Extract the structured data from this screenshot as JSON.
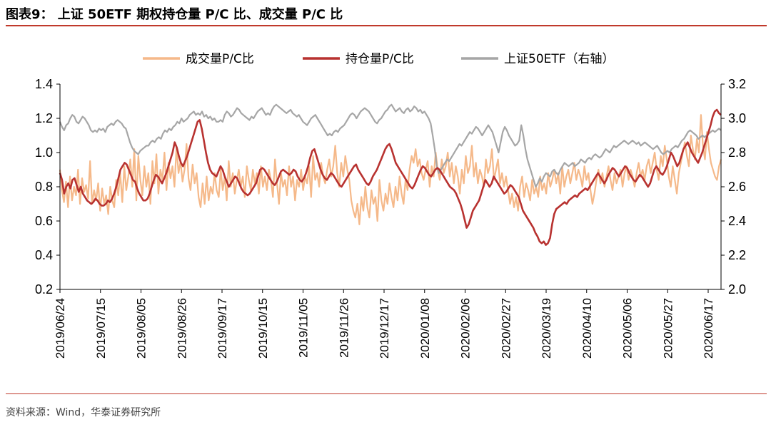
{
  "header": {
    "title": "图表9： 上证 50ETF 期权持仓量 P/C 比、成交量 P/C 比"
  },
  "footer": {
    "source": "资料来源：Wind，华泰证券研究所"
  },
  "chart_data": {
    "type": "line",
    "title": "上证 50ETF 期权持仓量 P/C 比、成交量 P/C 比",
    "x_tick_labels": [
      "2019/06/24",
      "2019/07/15",
      "2019/08/05",
      "2019/08/26",
      "2019/09/17",
      "2019/10/15",
      "2019/11/05",
      "2019/11/26",
      "2019/12/17",
      "2020/01/08",
      "2020/02/06",
      "2020/02/27",
      "2020/03/19",
      "2020/04/10",
      "2020/05/06",
      "2020/05/27",
      "2020/06/17"
    ],
    "y_left": {
      "min": 0.2,
      "max": 1.4,
      "ticks": [
        "0.2",
        "0.4",
        "0.6",
        "0.8",
        "1.0",
        "1.2",
        "1.4"
      ]
    },
    "y_right": {
      "min": 2.0,
      "max": 3.2,
      "ticks": [
        "2.0",
        "2.2",
        "2.4",
        "2.6",
        "2.8",
        "3.0",
        "3.2"
      ]
    },
    "legend_position": "top-center",
    "series": [
      {
        "name": "成交量P/C比",
        "axis": "left",
        "color": "#f5b98a",
        "values": [
          0.9,
          0.78,
          0.71,
          0.83,
          0.68,
          0.86,
          0.72,
          0.8,
          0.75,
          0.9,
          0.7,
          0.85,
          0.77,
          0.81,
          0.73,
          0.95,
          0.7,
          0.78,
          0.72,
          0.82,
          0.66,
          0.79,
          0.7,
          0.75,
          0.64,
          0.8,
          0.72,
          0.68,
          0.84,
          0.75,
          0.88,
          0.71,
          0.92,
          0.78,
          0.86,
          0.96,
          0.8,
          1.02,
          0.72,
          0.98,
          0.84,
          0.75,
          0.92,
          0.8,
          0.88,
          0.7,
          0.95,
          0.82,
          0.99,
          0.76,
          0.9,
          0.84,
          1.0,
          0.78,
          0.94,
          0.85,
          0.92,
          0.8,
          1.03,
          0.88,
          0.95,
          0.83,
          0.9,
          1.05,
          0.85,
          0.78,
          0.93,
          0.82,
          0.88,
          0.74,
          0.68,
          0.82,
          0.7,
          0.86,
          0.72,
          0.8,
          0.76,
          0.88,
          0.78,
          0.74,
          0.9,
          0.78,
          0.86,
          0.72,
          0.95,
          0.8,
          0.88,
          0.76,
          0.84,
          0.9,
          0.8,
          0.86,
          0.74,
          0.92,
          0.84,
          0.78,
          0.9,
          0.82,
          0.88,
          0.76,
          0.92,
          0.8,
          0.86,
          0.78,
          0.9,
          0.84,
          0.74,
          0.96,
          0.82,
          0.7,
          0.88,
          0.8,
          0.84,
          0.75,
          0.92,
          0.8,
          0.86,
          0.72,
          0.84,
          0.8,
          0.9,
          0.78,
          0.86,
          0.82,
          0.92,
          0.74,
          0.98,
          0.84,
          0.88,
          0.8,
          0.94,
          0.86,
          0.82,
          0.9,
          0.96,
          0.86,
          0.92,
          1.04,
          0.88,
          0.8,
          0.94,
          0.86,
          0.98,
          0.9,
          0.84,
          0.72,
          0.66,
          0.62,
          0.7,
          0.58,
          0.74,
          0.66,
          0.8,
          0.68,
          0.62,
          0.78,
          0.7,
          0.74,
          0.6,
          0.84,
          0.72,
          0.66,
          0.76,
          0.7,
          0.82,
          0.74,
          0.68,
          0.8,
          0.72,
          0.86,
          0.76,
          0.7,
          0.84,
          0.78,
          0.9,
          0.98,
          0.94,
          1.02,
          0.92,
          0.96,
          0.88,
          0.84,
          0.9,
          0.95,
          0.8,
          0.92,
          0.86,
          1.0,
          0.9,
          0.84,
          0.96,
          0.88,
          0.92,
          1.0,
          0.86,
          0.94,
          0.82,
          0.92,
          0.86,
          0.76,
          0.9,
          0.82,
          0.98,
          0.88,
          0.92,
          1.04,
          0.86,
          0.94,
          0.82,
          0.9,
          0.86,
          0.8,
          0.96,
          0.88,
          0.92,
          1.02,
          0.84,
          0.9,
          0.96,
          0.82,
          0.88,
          0.8,
          0.86,
          0.78,
          0.7,
          0.76,
          0.68,
          0.74,
          0.66,
          0.8,
          0.86,
          0.74,
          0.82,
          0.78,
          0.72,
          0.84,
          0.76,
          0.8,
          0.74,
          0.86,
          0.78,
          0.82,
          0.76,
          0.88,
          0.8,
          0.84,
          0.9,
          0.82,
          0.88,
          0.76,
          0.92,
          0.8,
          0.86,
          0.9,
          0.82,
          0.88,
          0.94,
          0.84,
          0.9,
          0.86,
          0.8,
          0.92,
          0.84,
          0.88,
          0.78,
          0.7,
          0.76,
          0.84,
          0.9,
          0.82,
          0.88,
          0.8,
          0.86,
          0.92,
          0.84,
          0.78,
          0.88,
          0.82,
          0.86,
          0.9,
          0.8,
          0.88,
          0.92,
          0.84,
          0.9,
          0.86,
          0.8,
          0.88,
          0.94,
          0.86,
          0.9,
          0.84,
          0.92,
          0.96,
          0.88,
          0.94,
          1.0,
          0.9,
          0.84,
          0.98,
          0.92,
          1.04,
          0.96,
          0.86,
          0.8,
          0.92,
          0.84,
          0.76,
          0.88,
          0.94,
          1.0,
          1.06,
          0.98,
          0.92,
          1.1,
          1.02,
          0.96,
          1.08,
          1.0,
          1.22,
          1.04,
          0.96,
          1.12,
          1.02,
          0.94,
          0.9,
          0.86,
          0.84,
          0.92,
          0.96
        ]
      },
      {
        "name": "持仓量P/C比",
        "axis": "left",
        "color": "#b83230",
        "values": [
          0.88,
          0.84,
          0.76,
          0.8,
          0.82,
          0.79,
          0.84,
          0.85,
          0.81,
          0.77,
          0.8,
          0.76,
          0.74,
          0.72,
          0.71,
          0.7,
          0.71,
          0.73,
          0.72,
          0.7,
          0.69,
          0.69,
          0.7,
          0.72,
          0.71,
          0.73,
          0.76,
          0.8,
          0.85,
          0.9,
          0.92,
          0.94,
          0.93,
          0.9,
          0.87,
          0.84,
          0.83,
          0.79,
          0.76,
          0.74,
          0.72,
          0.72,
          0.73,
          0.76,
          0.8,
          0.84,
          0.87,
          0.86,
          0.84,
          0.82,
          0.85,
          0.88,
          0.92,
          0.96,
          1.0,
          1.06,
          1.03,
          0.98,
          0.94,
          0.92,
          0.95,
          0.98,
          1.02,
          1.06,
          1.1,
          1.14,
          1.18,
          1.19,
          1.14,
          1.07,
          1.0,
          0.94,
          0.9,
          0.88,
          0.87,
          0.86,
          0.89,
          0.92,
          0.9,
          0.86,
          0.83,
          0.8,
          0.82,
          0.84,
          0.86,
          0.85,
          0.82,
          0.79,
          0.77,
          0.76,
          0.75,
          0.76,
          0.78,
          0.8,
          0.82,
          0.86,
          0.9,
          0.91,
          0.9,
          0.88,
          0.86,
          0.84,
          0.82,
          0.81,
          0.83,
          0.86,
          0.89,
          0.9,
          0.89,
          0.88,
          0.87,
          0.88,
          0.9,
          0.89,
          0.86,
          0.84,
          0.83,
          0.85,
          0.88,
          0.92,
          0.97,
          1.01,
          1.02,
          0.98,
          0.94,
          0.9,
          0.87,
          0.85,
          0.84,
          0.86,
          0.88,
          0.87,
          0.85,
          0.83,
          0.81,
          0.8,
          0.82,
          0.84,
          0.86,
          0.88,
          0.9,
          0.92,
          0.93,
          0.9,
          0.88,
          0.86,
          0.84,
          0.82,
          0.81,
          0.83,
          0.86,
          0.88,
          0.9,
          0.93,
          0.96,
          0.99,
          1.02,
          1.04,
          1.05,
          1.02,
          0.98,
          0.94,
          0.92,
          0.9,
          0.88,
          0.86,
          0.84,
          0.82,
          0.8,
          0.79,
          0.81,
          0.84,
          0.87,
          0.9,
          0.92,
          0.91,
          0.89,
          0.87,
          0.86,
          0.88,
          0.9,
          0.91,
          0.9,
          0.88,
          0.86,
          0.84,
          0.82,
          0.8,
          0.79,
          0.78,
          0.76,
          0.73,
          0.7,
          0.66,
          0.61,
          0.56,
          0.58,
          0.62,
          0.66,
          0.68,
          0.7,
          0.72,
          0.76,
          0.8,
          0.84,
          0.82,
          0.8,
          0.82,
          0.86,
          0.84,
          0.82,
          0.8,
          0.78,
          0.76,
          0.77,
          0.79,
          0.81,
          0.8,
          0.78,
          0.76,
          0.74,
          0.7,
          0.66,
          0.64,
          0.62,
          0.6,
          0.58,
          0.56,
          0.53,
          0.51,
          0.48,
          0.47,
          0.48,
          0.46,
          0.47,
          0.5,
          0.58,
          0.64,
          0.67,
          0.68,
          0.69,
          0.7,
          0.71,
          0.7,
          0.72,
          0.73,
          0.74,
          0.75,
          0.74,
          0.76,
          0.77,
          0.78,
          0.79,
          0.78,
          0.8,
          0.82,
          0.84,
          0.86,
          0.88,
          0.86,
          0.84,
          0.82,
          0.84,
          0.87,
          0.89,
          0.91,
          0.9,
          0.88,
          0.86,
          0.88,
          0.9,
          0.92,
          0.91,
          0.88,
          0.86,
          0.84,
          0.83,
          0.85,
          0.87,
          0.86,
          0.84,
          0.82,
          0.8,
          0.82,
          0.86,
          0.9,
          0.92,
          0.9,
          0.88,
          0.87,
          0.89,
          0.92,
          0.96,
          1.0,
          0.98,
          0.95,
          0.92,
          0.94,
          0.98,
          1.02,
          1.04,
          1.06,
          1.03,
          1.0,
          0.98,
          0.96,
          0.94,
          0.97,
          1.0,
          1.04,
          1.08,
          1.12,
          1.16,
          1.21,
          1.24,
          1.25,
          1.23,
          1.22
        ]
      },
      {
        "name": "上证50ETF（右轴）",
        "axis": "right",
        "color": "#a6a6a6",
        "values": [
          2.98,
          2.95,
          2.93,
          2.96,
          2.97,
          3.0,
          3.02,
          3.01,
          2.98,
          2.97,
          2.99,
          3.01,
          3.0,
          2.98,
          2.96,
          2.93,
          2.92,
          2.93,
          2.92,
          2.94,
          2.93,
          2.94,
          2.92,
          2.95,
          2.96,
          2.97,
          2.96,
          2.98,
          2.99,
          2.98,
          2.97,
          2.95,
          2.94,
          2.9,
          2.86,
          2.83,
          2.81,
          2.8,
          2.79,
          2.81,
          2.82,
          2.83,
          2.84,
          2.84,
          2.86,
          2.87,
          2.86,
          2.88,
          2.89,
          2.88,
          2.91,
          2.93,
          2.92,
          2.94,
          2.93,
          2.95,
          2.96,
          2.98,
          2.97,
          3.0,
          2.98,
          2.99,
          3.0,
          3.02,
          3.03,
          3.04,
          3.02,
          3.03,
          3.02,
          3.04,
          3.01,
          3.02,
          3.0,
          3.01,
          2.99,
          3.0,
          2.98,
          2.98,
          2.99,
          2.98,
          3.02,
          3.04,
          3.03,
          3.01,
          3.02,
          3.04,
          3.06,
          3.05,
          3.03,
          3.02,
          3.01,
          3.0,
          2.99,
          3.01,
          3.0,
          3.02,
          3.04,
          3.05,
          3.06,
          3.04,
          3.02,
          3.03,
          3.02,
          3.05,
          3.07,
          3.08,
          3.07,
          3.06,
          3.05,
          3.04,
          3.03,
          3.04,
          3.05,
          3.03,
          3.02,
          3.01,
          3.02,
          3.0,
          2.98,
          2.97,
          2.96,
          2.98,
          3.0,
          3.01,
          3.02,
          3.0,
          2.98,
          2.96,
          2.94,
          2.92,
          2.9,
          2.91,
          2.9,
          2.92,
          2.93,
          2.92,
          2.94,
          2.95,
          2.96,
          2.98,
          3.0,
          3.02,
          3.03,
          3.02,
          3.0,
          3.02,
          3.04,
          3.05,
          3.06,
          3.05,
          3.04,
          3.02,
          3.0,
          2.98,
          2.97,
          2.99,
          3.0,
          3.02,
          3.04,
          3.05,
          3.07,
          3.08,
          3.06,
          3.04,
          3.05,
          3.06,
          3.04,
          3.03,
          3.05,
          3.06,
          3.04,
          3.05,
          3.07,
          3.06,
          3.04,
          3.05,
          3.03,
          3.04,
          3.02,
          3.0,
          2.97,
          2.9,
          2.82,
          2.72,
          2.68,
          2.7,
          2.72,
          2.74,
          2.76,
          2.75,
          2.77,
          2.79,
          2.81,
          2.83,
          2.85,
          2.84,
          2.86,
          2.88,
          2.9,
          2.92,
          2.91,
          2.93,
          2.95,
          2.94,
          2.92,
          2.9,
          2.92,
          2.94,
          2.96,
          2.94,
          2.92,
          2.88,
          2.84,
          2.8,
          2.86,
          2.92,
          2.95,
          2.93,
          2.9,
          2.88,
          2.86,
          2.84,
          2.85,
          2.87,
          2.96,
          2.9,
          2.82,
          2.76,
          2.72,
          2.68,
          2.64,
          2.6,
          2.62,
          2.65,
          2.63,
          2.66,
          2.68,
          2.67,
          2.66,
          2.69,
          2.7,
          2.68,
          2.67,
          2.7,
          2.72,
          2.74,
          2.73,
          2.72,
          2.73,
          2.74,
          2.72,
          2.73,
          2.74,
          2.76,
          2.75,
          2.74,
          2.76,
          2.77,
          2.76,
          2.78,
          2.79,
          2.78,
          2.77,
          2.78,
          2.8,
          2.82,
          2.81,
          2.8,
          2.82,
          2.84,
          2.83,
          2.84,
          2.85,
          2.86,
          2.87,
          2.86,
          2.85,
          2.86,
          2.87,
          2.86,
          2.85,
          2.86,
          2.84,
          2.85,
          2.86,
          2.85,
          2.84,
          2.83,
          2.82,
          2.83,
          2.84,
          2.82,
          2.8,
          2.79,
          2.8,
          2.81,
          2.8,
          2.82,
          2.83,
          2.84,
          2.83,
          2.85,
          2.87,
          2.88,
          2.9,
          2.92,
          2.93,
          2.92,
          2.91,
          2.9,
          2.88,
          2.89,
          2.9,
          2.89,
          2.9,
          2.91,
          2.92,
          2.93,
          2.92,
          2.93,
          2.94,
          2.93
        ]
      }
    ]
  }
}
